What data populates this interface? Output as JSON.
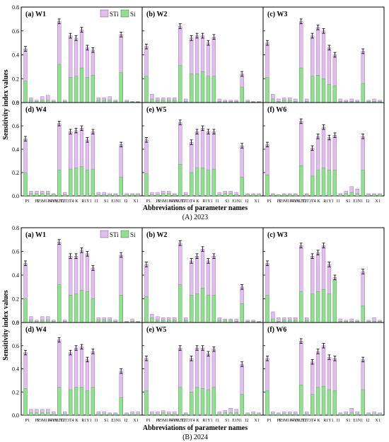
{
  "figure": {
    "ylabel": "Sensitivity index values",
    "xlabel": "Abbreviations of parameter names",
    "legend": [
      {
        "label": "STi",
        "color": "#e2bdf0"
      },
      {
        "label": "Si",
        "color": "#8fe08f"
      }
    ],
    "colors": {
      "sti": "#e2bdf0",
      "si": "#8fe08f"
    },
    "parameters": [
      "P1",
      "P2",
      "P3",
      "M1",
      "P4",
      "V1",
      "G1",
      "M2",
      "T1",
      "T2",
      "T3",
      "T4",
      "K",
      "R1",
      "Y1",
      "I1",
      "S1",
      "E1",
      "N1",
      "I2",
      "X1"
    ],
    "tick_labels": [
      "P1",
      "P2",
      "P3M1P4V1",
      "G1M2T1",
      "T2T3T4",
      "K",
      "R1Y1",
      "I1",
      "S1",
      "E1N1",
      "I2",
      "X1"
    ],
    "yticks": [
      "0.0",
      "0.2",
      "0.4",
      "0.6",
      "0.8"
    ]
  },
  "chart_data": [
    {
      "type": "bar",
      "title": "(A) 2023",
      "ylim": [
        0,
        0.8
      ],
      "panels": [
        {
          "label": "(a) W1",
          "sti": [
            0.45,
            0.04,
            0.02,
            0.05,
            0.06,
            0.02,
            0.68,
            0.02,
            0.56,
            0.54,
            0.61,
            0.46,
            0.44,
            0.04,
            0.04,
            0.05,
            0.02,
            0.57,
            0.02,
            0.01,
            0.01
          ],
          "si": [
            0.18,
            0.02,
            0.01,
            0.02,
            0.02,
            0.01,
            0.32,
            0.01,
            0.21,
            0.22,
            0.29,
            0.21,
            0.23,
            0.02,
            0.02,
            0.02,
            0.01,
            0.25,
            0.01,
            0.005,
            0.005
          ]
        },
        {
          "label": "(b) W2",
          "sti": [
            0.47,
            0.07,
            0.04,
            0.04,
            0.04,
            0.04,
            0.64,
            0.03,
            0.54,
            0.56,
            0.56,
            0.5,
            0.55,
            0.03,
            0.02,
            0.02,
            0.02,
            0.24,
            0.02,
            0.01,
            0.01
          ],
          "si": [
            0.22,
            0.03,
            0.02,
            0.02,
            0.02,
            0.02,
            0.31,
            0.01,
            0.24,
            0.24,
            0.26,
            0.22,
            0.22,
            0.01,
            0.01,
            0.01,
            0.01,
            0.13,
            0.01,
            0.005,
            0.005
          ]
        },
        {
          "label": "(c) W3",
          "sti": [
            0.5,
            0.07,
            0.03,
            0.04,
            0.04,
            0.03,
            0.68,
            0.03,
            0.56,
            0.63,
            0.6,
            0.46,
            0.4,
            0.03,
            0.02,
            0.03,
            0.02,
            0.43,
            0.02,
            0.03,
            0.02
          ],
          "si": [
            0.21,
            0.03,
            0.01,
            0.02,
            0.02,
            0.01,
            0.29,
            0.01,
            0.22,
            0.23,
            0.2,
            0.15,
            0.14,
            0.01,
            0.01,
            0.01,
            0.01,
            0.16,
            0.01,
            0.01,
            0.01
          ]
        },
        {
          "label": "(d) W4",
          "sti": [
            0.49,
            0.04,
            0.04,
            0.04,
            0.04,
            0.02,
            0.62,
            0.03,
            0.55,
            0.56,
            0.58,
            0.48,
            0.55,
            0.03,
            0.03,
            0.02,
            0.02,
            0.44,
            0.02,
            0.02,
            0.02
          ],
          "si": [
            0.2,
            0.02,
            0.02,
            0.02,
            0.02,
            0.01,
            0.22,
            0.01,
            0.23,
            0.24,
            0.25,
            0.22,
            0.23,
            0.01,
            0.01,
            0.01,
            0.01,
            0.16,
            0.01,
            0.01,
            0.01
          ]
        },
        {
          "label": "(e) W5",
          "sti": [
            0.48,
            0.03,
            0.03,
            0.04,
            0.04,
            0.02,
            0.63,
            0.03,
            0.46,
            0.55,
            0.58,
            0.55,
            0.55,
            0.03,
            0.04,
            0.04,
            0.03,
            0.43,
            0.02,
            0.02,
            0.02
          ],
          "si": [
            0.19,
            0.01,
            0.01,
            0.02,
            0.02,
            0.01,
            0.27,
            0.01,
            0.2,
            0.24,
            0.24,
            0.22,
            0.23,
            0.01,
            0.02,
            0.02,
            0.01,
            0.16,
            0.01,
            0.01,
            0.01
          ]
        },
        {
          "label": "(f) W6",
          "sti": [
            0.44,
            0.02,
            0.01,
            0.02,
            0.02,
            0.02,
            0.64,
            0.02,
            0.41,
            0.51,
            0.59,
            0.5,
            0.52,
            0.02,
            0.04,
            0.08,
            0.06,
            0.51,
            0.02,
            0.02,
            0.02
          ],
          "si": [
            0.18,
            0.01,
            0.01,
            0.01,
            0.01,
            0.01,
            0.26,
            0.01,
            0.17,
            0.22,
            0.24,
            0.22,
            0.22,
            0.01,
            0.02,
            0.03,
            0.02,
            0.22,
            0.01,
            0.01,
            0.01
          ]
        }
      ]
    },
    {
      "type": "bar",
      "title": "(B) 2024",
      "ylim": [
        0,
        0.8
      ],
      "panels": [
        {
          "label": "(a) W1",
          "sti": [
            0.5,
            0.05,
            0.02,
            0.05,
            0.05,
            0.02,
            0.68,
            0.02,
            0.56,
            0.56,
            0.61,
            0.58,
            0.46,
            0.04,
            0.04,
            0.04,
            0.02,
            0.57,
            0.01,
            0.03,
            0.01
          ],
          "si": [
            0.2,
            0.02,
            0.01,
            0.02,
            0.02,
            0.01,
            0.32,
            0.01,
            0.23,
            0.24,
            0.27,
            0.26,
            0.2,
            0.02,
            0.02,
            0.02,
            0.01,
            0.23,
            0.005,
            0.01,
            0.005
          ]
        },
        {
          "label": "(b) W2",
          "sti": [
            0.49,
            0.07,
            0.05,
            0.04,
            0.04,
            0.04,
            0.67,
            0.04,
            0.52,
            0.56,
            0.62,
            0.52,
            0.56,
            0.04,
            0.03,
            0.03,
            0.03,
            0.3,
            0.02,
            0.02,
            0.01
          ],
          "si": [
            0.22,
            0.04,
            0.02,
            0.02,
            0.02,
            0.02,
            0.32,
            0.02,
            0.23,
            0.24,
            0.29,
            0.23,
            0.23,
            0.02,
            0.02,
            0.02,
            0.01,
            0.16,
            0.01,
            0.01,
            0.005
          ]
        },
        {
          "label": "(c) W3",
          "sti": [
            0.5,
            0.09,
            0.04,
            0.04,
            0.04,
            0.04,
            0.65,
            0.04,
            0.56,
            0.59,
            0.65,
            0.49,
            0.38,
            0.03,
            0.02,
            0.03,
            0.02,
            0.43,
            0.02,
            0.04,
            0.02
          ],
          "si": [
            0.23,
            0.03,
            0.01,
            0.02,
            0.02,
            0.02,
            0.26,
            0.02,
            0.24,
            0.26,
            0.28,
            0.24,
            0.36,
            0.01,
            0.01,
            0.01,
            0.01,
            0.14,
            0.01,
            0.01,
            0.01
          ]
        },
        {
          "label": "(d) W4",
          "sti": [
            0.54,
            0.05,
            0.05,
            0.05,
            0.05,
            0.03,
            0.65,
            0.03,
            0.54,
            0.58,
            0.59,
            0.48,
            0.55,
            0.03,
            0.03,
            0.02,
            0.02,
            0.38,
            0.02,
            0.03,
            0.03
          ],
          "si": [
            0.23,
            0.02,
            0.02,
            0.02,
            0.02,
            0.01,
            0.24,
            0.01,
            0.22,
            0.24,
            0.24,
            0.21,
            0.24,
            0.01,
            0.01,
            0.01,
            0.01,
            0.15,
            0.01,
            0.01,
            0.01
          ]
        },
        {
          "label": "(e) W5",
          "sti": [
            0.49,
            0.03,
            0.03,
            0.04,
            0.03,
            0.03,
            0.58,
            0.02,
            0.49,
            0.58,
            0.58,
            0.53,
            0.57,
            0.03,
            0.04,
            0.06,
            0.05,
            0.44,
            0.02,
            0.03,
            0.02
          ],
          "si": [
            0.21,
            0.01,
            0.01,
            0.02,
            0.01,
            0.01,
            0.24,
            0.01,
            0.2,
            0.24,
            0.23,
            0.22,
            0.24,
            0.01,
            0.02,
            0.02,
            0.02,
            0.18,
            0.01,
            0.01,
            0.01
          ]
        },
        {
          "label": "(f) W6",
          "sti": [
            0.49,
            0.03,
            0.02,
            0.03,
            0.03,
            0.03,
            0.64,
            0.03,
            0.46,
            0.55,
            0.6,
            0.5,
            0.49,
            0.02,
            0.03,
            0.06,
            0.03,
            0.48,
            0.02,
            0.03,
            0.02
          ],
          "si": [
            0.21,
            0.01,
            0.01,
            0.01,
            0.01,
            0.01,
            0.26,
            0.01,
            0.18,
            0.24,
            0.25,
            0.22,
            0.21,
            0.01,
            0.01,
            0.02,
            0.01,
            0.22,
            0.01,
            0.01,
            0.01
          ]
        }
      ]
    }
  ]
}
